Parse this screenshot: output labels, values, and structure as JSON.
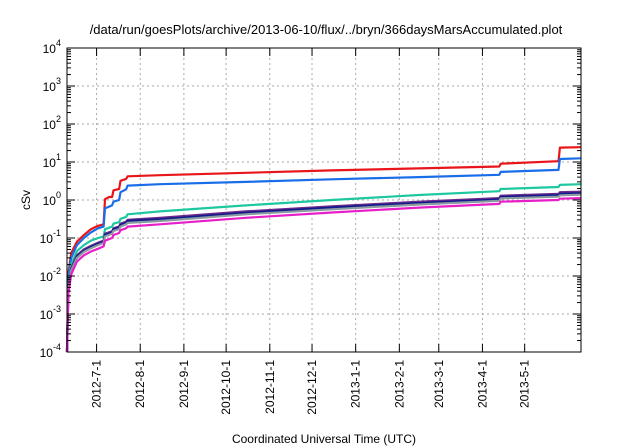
{
  "chart_data": {
    "type": "line",
    "title": "/data/run/goesPlots/archive/2013-06-10/flux/../bryn/366daysMarsAccumulated.plot",
    "xlabel": "Coordinated Universal Time (UTC)",
    "ylabel": "cSv",
    "y_scale": "log",
    "ylim": [
      0.0001,
      10000
    ],
    "xlim": [
      "2012-06-10",
      "2013-06-10"
    ],
    "grid": true,
    "x_ticks": [
      "2012-7-1",
      "2012-8-1",
      "2012-9-1",
      "2012-10-1",
      "2012-11-1",
      "2012-12-1",
      "2013-1-1",
      "2013-2-1",
      "2013-3-1",
      "2013-4-1",
      "2013-5-1"
    ],
    "y_ticks": [
      {
        "base": "10",
        "exp": "-4",
        "value": 0.0001
      },
      {
        "base": "10",
        "exp": "-3",
        "value": 0.001
      },
      {
        "base": "10",
        "exp": "-2",
        "value": 0.01
      },
      {
        "base": "10",
        "exp": "-1",
        "value": 0.1
      },
      {
        "base": "10",
        "exp": "0",
        "value": 1
      },
      {
        "base": "10",
        "exp": "1",
        "value": 10
      },
      {
        "base": "10",
        "exp": "2",
        "value": 100
      },
      {
        "base": "10",
        "exp": "3",
        "value": 1000
      },
      {
        "base": "10",
        "exp": "4",
        "value": 10000
      }
    ],
    "series": [
      {
        "color": "#e8151a",
        "points": [
          [
            "2012-06-10",
            0.0001
          ],
          [
            "2012-06-11",
            0.012
          ],
          [
            "2012-06-13",
            0.04
          ],
          [
            "2012-06-17",
            0.08
          ],
          [
            "2012-06-22",
            0.12
          ],
          [
            "2012-06-27",
            0.17
          ],
          [
            "2012-07-02",
            0.21
          ],
          [
            "2012-07-06",
            0.23
          ],
          [
            "2012-07-07",
            1.05
          ],
          [
            "2012-07-10",
            1.2
          ],
          [
            "2012-07-12",
            1.2
          ],
          [
            "2012-07-13",
            1.8
          ],
          [
            "2012-07-17",
            1.95
          ],
          [
            "2012-07-18",
            3.2
          ],
          [
            "2012-07-22",
            3.6
          ],
          [
            "2012-07-23",
            4.2
          ],
          [
            "2012-08-15",
            4.5
          ],
          [
            "2012-10-15",
            5.2
          ],
          [
            "2012-12-15",
            6.0
          ],
          [
            "2013-02-15",
            6.8
          ],
          [
            "2013-04-13",
            7.6
          ],
          [
            "2013-04-14",
            9.0
          ],
          [
            "2013-05-25",
            10.5
          ],
          [
            "2013-05-26",
            24
          ],
          [
            "2013-06-10",
            24.5
          ]
        ]
      },
      {
        "color": "#1a6de8",
        "points": [
          [
            "2012-06-10",
            0.0001
          ],
          [
            "2012-06-11",
            0.009
          ],
          [
            "2012-06-13",
            0.03
          ],
          [
            "2012-06-17",
            0.065
          ],
          [
            "2012-06-22",
            0.1
          ],
          [
            "2012-06-27",
            0.14
          ],
          [
            "2012-07-02",
            0.18
          ],
          [
            "2012-07-06",
            0.2
          ],
          [
            "2012-07-07",
            0.6
          ],
          [
            "2012-07-12",
            0.72
          ],
          [
            "2012-07-13",
            0.9
          ],
          [
            "2012-07-17",
            1.0
          ],
          [
            "2012-07-18",
            1.6
          ],
          [
            "2012-07-22",
            1.9
          ],
          [
            "2012-07-23",
            2.4
          ],
          [
            "2012-08-15",
            2.6
          ],
          [
            "2012-10-15",
            3.0
          ],
          [
            "2012-12-15",
            3.5
          ],
          [
            "2013-02-15",
            4.0
          ],
          [
            "2013-04-13",
            4.6
          ],
          [
            "2013-04-14",
            5.5
          ],
          [
            "2013-05-25",
            6.2
          ],
          [
            "2013-05-26",
            12
          ],
          [
            "2013-06-10",
            12.5
          ]
        ]
      },
      {
        "color": "#1dc8a0",
        "points": [
          [
            "2012-06-10",
            0.0001
          ],
          [
            "2012-06-11",
            0.006
          ],
          [
            "2012-06-13",
            0.02
          ],
          [
            "2012-06-17",
            0.045
          ],
          [
            "2012-06-22",
            0.065
          ],
          [
            "2012-06-27",
            0.085
          ],
          [
            "2012-07-02",
            0.1
          ],
          [
            "2012-07-06",
            0.11
          ],
          [
            "2012-07-07",
            0.17
          ],
          [
            "2012-07-12",
            0.2
          ],
          [
            "2012-07-13",
            0.24
          ],
          [
            "2012-07-17",
            0.26
          ],
          [
            "2012-07-18",
            0.32
          ],
          [
            "2012-07-22",
            0.36
          ],
          [
            "2012-07-23",
            0.42
          ],
          [
            "2012-08-15",
            0.5
          ],
          [
            "2012-10-15",
            0.72
          ],
          [
            "2012-12-15",
            1.0
          ],
          [
            "2013-02-15",
            1.35
          ],
          [
            "2013-04-13",
            1.7
          ],
          [
            "2013-04-14",
            1.95
          ],
          [
            "2013-05-25",
            2.2
          ],
          [
            "2013-05-26",
            2.5
          ],
          [
            "2013-06-10",
            2.6
          ]
        ]
      },
      {
        "color": "#6a2a8a",
        "points": [
          [
            "2012-06-10",
            0.0001
          ],
          [
            "2012-06-11",
            0.005
          ],
          [
            "2012-06-13",
            0.016
          ],
          [
            "2012-06-17",
            0.035
          ],
          [
            "2012-06-22",
            0.05
          ],
          [
            "2012-06-27",
            0.062
          ],
          [
            "2012-07-02",
            0.075
          ],
          [
            "2012-07-06",
            0.085
          ],
          [
            "2012-07-07",
            0.13
          ],
          [
            "2012-07-12",
            0.15
          ],
          [
            "2012-07-13",
            0.18
          ],
          [
            "2012-07-17",
            0.2
          ],
          [
            "2012-07-18",
            0.24
          ],
          [
            "2012-07-22",
            0.27
          ],
          [
            "2012-07-23",
            0.3
          ],
          [
            "2012-08-15",
            0.34
          ],
          [
            "2012-10-15",
            0.5
          ],
          [
            "2012-12-15",
            0.68
          ],
          [
            "2013-02-15",
            0.9
          ],
          [
            "2013-04-13",
            1.12
          ],
          [
            "2013-04-14",
            1.3
          ],
          [
            "2013-05-25",
            1.45
          ],
          [
            "2013-05-26",
            1.6
          ],
          [
            "2013-06-10",
            1.65
          ]
        ]
      },
      {
        "color": "#101a8c",
        "points": [
          [
            "2012-06-10",
            0.0001
          ],
          [
            "2012-06-11",
            0.005
          ],
          [
            "2012-06-13",
            0.015
          ],
          [
            "2012-06-17",
            0.032
          ],
          [
            "2012-06-22",
            0.046
          ],
          [
            "2012-06-27",
            0.058
          ],
          [
            "2012-07-02",
            0.07
          ],
          [
            "2012-07-06",
            0.08
          ],
          [
            "2012-07-07",
            0.12
          ],
          [
            "2012-07-12",
            0.14
          ],
          [
            "2012-07-13",
            0.17
          ],
          [
            "2012-07-17",
            0.19
          ],
          [
            "2012-07-18",
            0.22
          ],
          [
            "2012-07-22",
            0.25
          ],
          [
            "2012-07-23",
            0.28
          ],
          [
            "2012-08-15",
            0.31
          ],
          [
            "2012-10-15",
            0.46
          ],
          [
            "2012-12-15",
            0.63
          ],
          [
            "2013-02-15",
            0.83
          ],
          [
            "2013-04-13",
            1.03
          ],
          [
            "2013-04-14",
            1.2
          ],
          [
            "2013-05-25",
            1.33
          ],
          [
            "2013-05-26",
            1.45
          ],
          [
            "2013-06-10",
            1.5
          ]
        ]
      },
      {
        "color": "#8a9aa0",
        "points": [
          [
            "2012-06-10",
            0.0001
          ],
          [
            "2012-06-11",
            0.0045
          ],
          [
            "2012-06-13",
            0.014
          ],
          [
            "2012-06-17",
            0.03
          ],
          [
            "2012-06-22",
            0.043
          ],
          [
            "2012-06-27",
            0.054
          ],
          [
            "2012-07-02",
            0.065
          ],
          [
            "2012-07-06",
            0.074
          ],
          [
            "2012-07-07",
            0.11
          ],
          [
            "2012-07-12",
            0.13
          ],
          [
            "2012-07-13",
            0.155
          ],
          [
            "2012-07-17",
            0.17
          ],
          [
            "2012-07-18",
            0.2
          ],
          [
            "2012-07-22",
            0.23
          ],
          [
            "2012-07-23",
            0.25
          ],
          [
            "2012-08-15",
            0.28
          ],
          [
            "2012-10-15",
            0.42
          ],
          [
            "2012-12-15",
            0.57
          ],
          [
            "2013-02-15",
            0.76
          ],
          [
            "2013-04-13",
            0.95
          ],
          [
            "2013-04-14",
            1.1
          ],
          [
            "2013-05-25",
            1.22
          ],
          [
            "2013-05-26",
            1.33
          ],
          [
            "2013-06-10",
            1.38
          ]
        ]
      },
      {
        "color": "#e81ec8",
        "points": [
          [
            "2012-06-10",
            0.0001
          ],
          [
            "2012-06-11",
            0.0035
          ],
          [
            "2012-06-13",
            0.011
          ],
          [
            "2012-06-17",
            0.024
          ],
          [
            "2012-06-22",
            0.035
          ],
          [
            "2012-06-27",
            0.044
          ],
          [
            "2012-07-02",
            0.052
          ],
          [
            "2012-07-06",
            0.06
          ],
          [
            "2012-07-07",
            0.085
          ],
          [
            "2012-07-12",
            0.1
          ],
          [
            "2012-07-13",
            0.12
          ],
          [
            "2012-07-17",
            0.135
          ],
          [
            "2012-07-18",
            0.16
          ],
          [
            "2012-07-22",
            0.18
          ],
          [
            "2012-07-23",
            0.2
          ],
          [
            "2012-08-15",
            0.23
          ],
          [
            "2012-10-15",
            0.34
          ],
          [
            "2012-12-15",
            0.47
          ],
          [
            "2013-02-15",
            0.63
          ],
          [
            "2013-04-13",
            0.79
          ],
          [
            "2013-04-14",
            0.9
          ],
          [
            "2013-05-25",
            1.0
          ],
          [
            "2013-05-26",
            1.08
          ],
          [
            "2013-06-10",
            1.12
          ]
        ]
      }
    ]
  }
}
